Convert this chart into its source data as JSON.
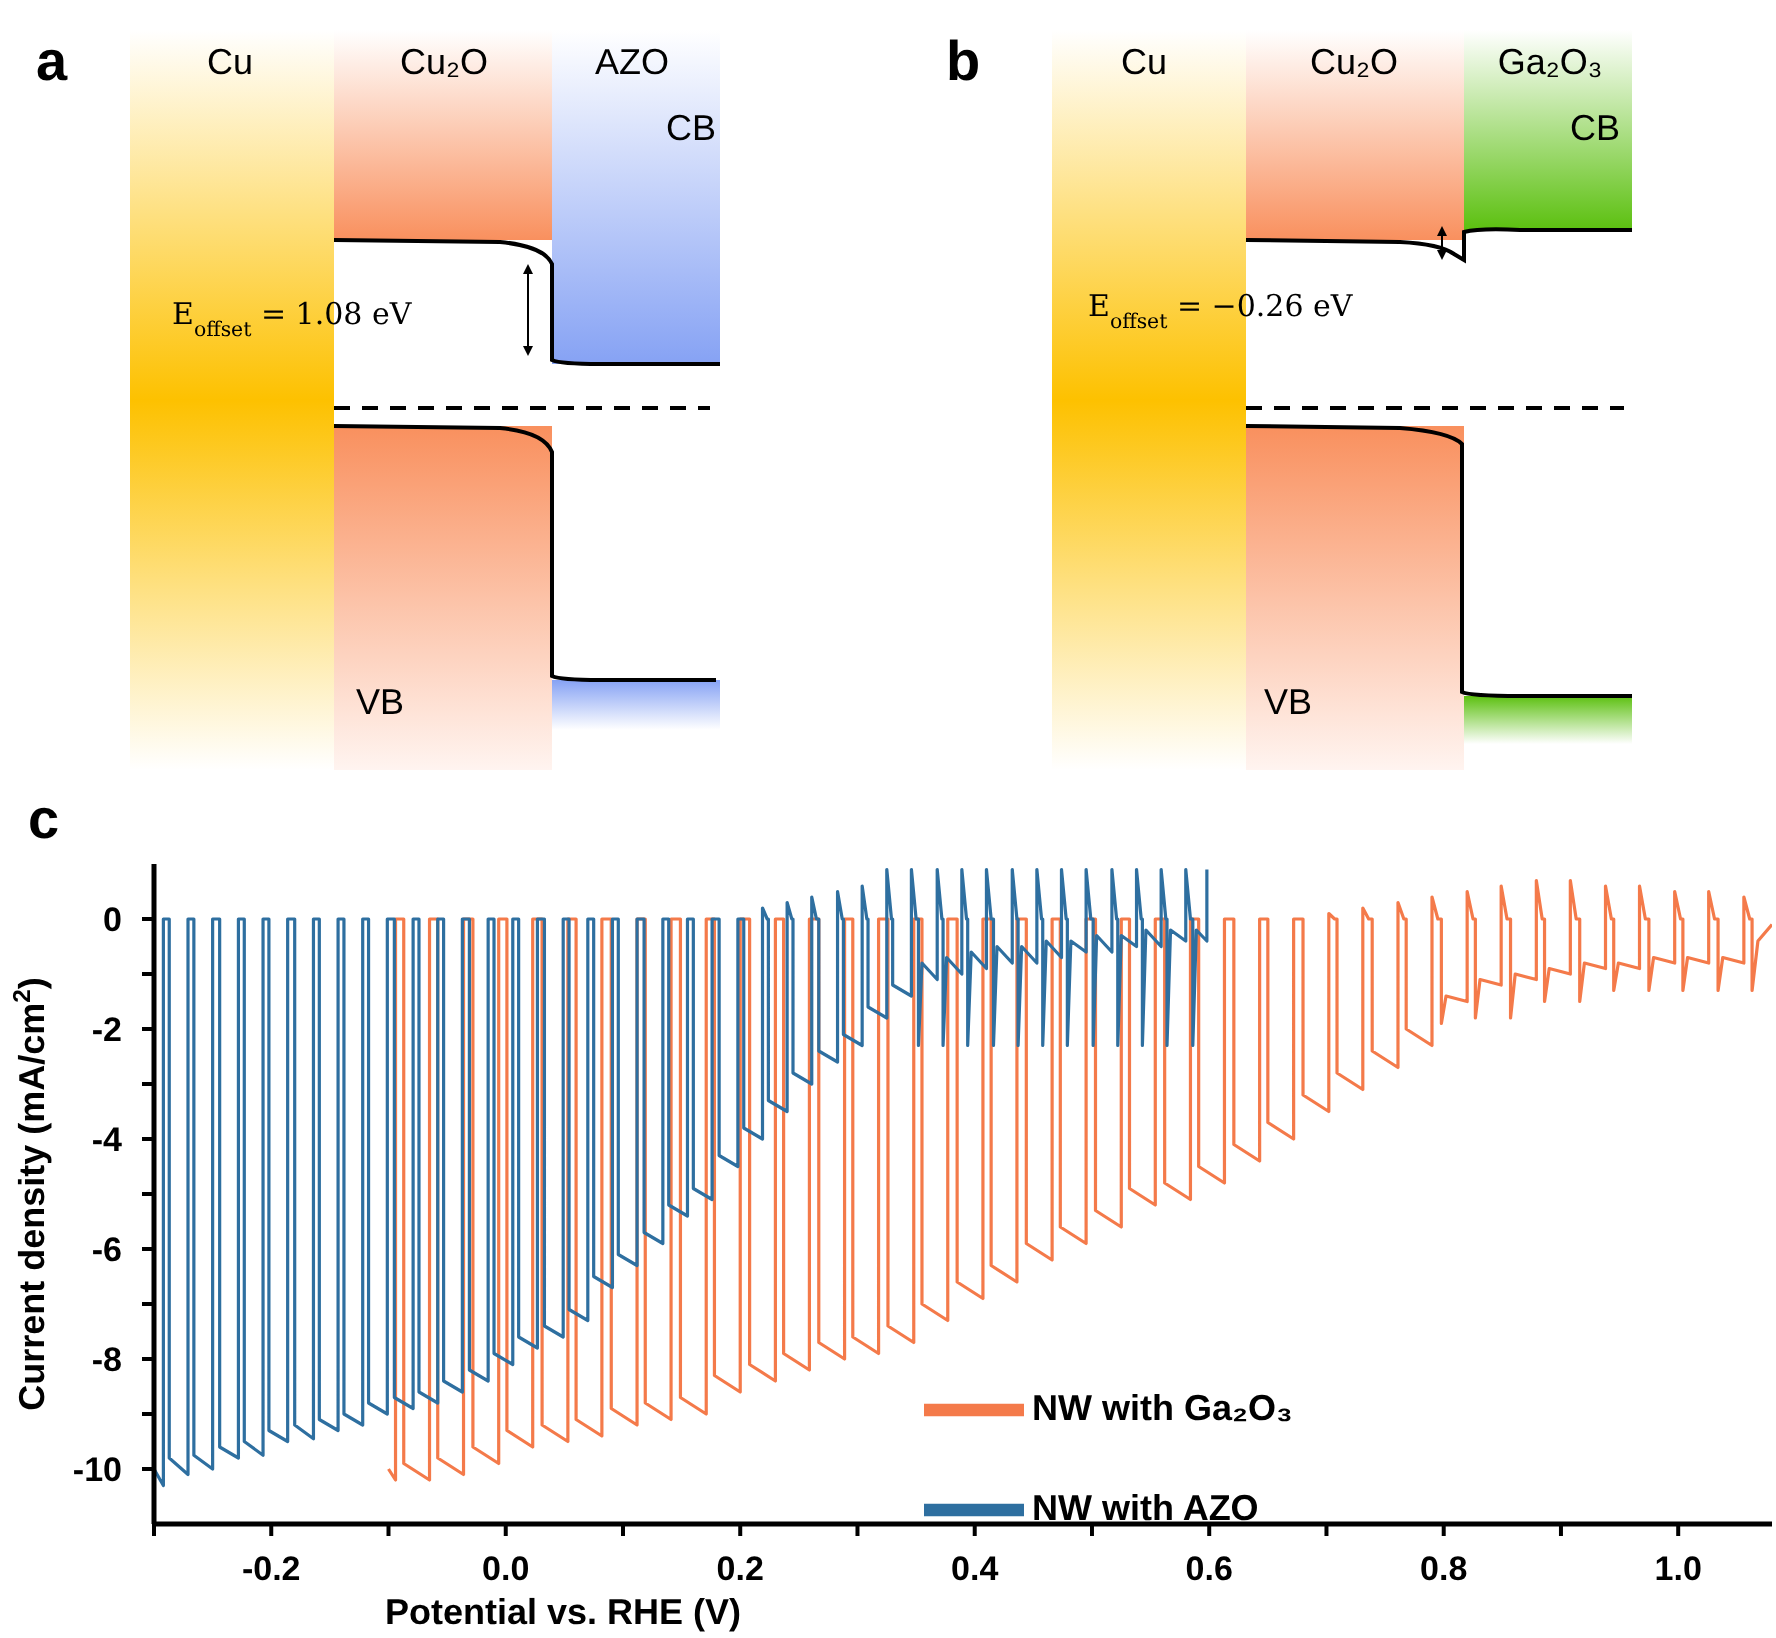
{
  "chart_data": [
    {
      "type": "other",
      "title": "a",
      "annotations": [
        "Cu",
        "Cu₂O",
        "AZO",
        "CB",
        "VB",
        "E$_{offset}$ = 1.08 eV"
      ]
    },
    {
      "type": "other",
      "title": "b",
      "annotations": [
        "Cu",
        "Cu₂O",
        "Ga₂O₃",
        "CB",
        "VB",
        "E$_{offset}$ = −0.26 eV"
      ]
    },
    {
      "type": "line",
      "title": "c",
      "xlabel": "Potential vs. RHE (V)",
      "ylabel": "Current density (mA/cm$^{2}$)",
      "xlim": [
        -0.3,
        1.08
      ],
      "ylim": [
        -11,
        1
      ],
      "xticks": [
        {
          "value": -0.3,
          "label": null
        },
        -0.2,
        {
          "value": -0.1,
          "label": null
        },
        {
          "value": 0,
          "label": "0.0"
        },
        {
          "value": 0.1,
          "label": null
        },
        0.2,
        {
          "value": 0.3,
          "label": null
        },
        0.4,
        {
          "value": 0.5,
          "label": null
        },
        0.6,
        {
          "value": 0.7,
          "label": null
        },
        0.8,
        {
          "value": 0.9,
          "label": null
        },
        {
          "value": 1.0,
          "label": "1.0"
        }
      ],
      "yticks": [
        -10,
        {
          "value": -9,
          "label": null
        },
        -8,
        {
          "value": -7,
          "label": null
        },
        -6,
        {
          "value": -5,
          "label": null
        },
        -4,
        {
          "value": -3,
          "label": null
        },
        -2,
        {
          "value": -1,
          "label": null
        },
        0
      ],
      "legend": "bottom",
      "series": [
        {
          "name": "NW with Ga₂O₃",
          "color": "#f47a4a",
          "x": [
            -0.1,
            -0.094,
            -0.094,
            -0.087,
            -0.087,
            -0.065,
            -0.065,
            -0.058,
            -0.058,
            -0.036,
            -0.036,
            -0.028,
            -0.028,
            -0.006,
            -0.006,
            0.001,
            0.001,
            0.023,
            0.023,
            0.031,
            0.031,
            0.053,
            0.053,
            0.06,
            0.06,
            0.082,
            0.082,
            0.09,
            0.09,
            0.112,
            0.112,
            0.119,
            0.119,
            0.141,
            0.141,
            0.149,
            0.149,
            0.171,
            0.171,
            0.178,
            0.178,
            0.2,
            0.2,
            0.208,
            0.208,
            0.23,
            0.23,
            0.237,
            0.237,
            0.259,
            0.259,
            0.267,
            0.267,
            0.289,
            0.289,
            0.296,
            0.296,
            0.318,
            0.318,
            0.326,
            0.326,
            0.348,
            0.348,
            0.355,
            0.355,
            0.377,
            0.377,
            0.385,
            0.385,
            0.407,
            0.407,
            0.414,
            0.414,
            0.436,
            0.436,
            0.444,
            0.444,
            0.466,
            0.466,
            0.473,
            0.473,
            0.495,
            0.495,
            0.503,
            0.503,
            0.525,
            0.525,
            0.532,
            0.532,
            0.554,
            0.554,
            0.562,
            0.562,
            0.584,
            0.584,
            0.591,
            0.591,
            0.613,
            0.613,
            0.621,
            0.621,
            0.643,
            0.643,
            0.65,
            0.65,
            0.672,
            0.672,
            0.68,
            0.68,
            0.702,
            0.702,
            0.707,
            0.709,
            0.709,
            0.731,
            0.731,
            0.736,
            0.739,
            0.739,
            0.761,
            0.761,
            0.766,
            0.768,
            0.768,
            0.79,
            0.79,
            0.795,
            0.798,
            0.798,
            0.802,
            0.82,
            0.82,
            0.825,
            0.827,
            0.827,
            0.831,
            0.849,
            0.849,
            0.854,
            0.857,
            0.857,
            0.861,
            0.879,
            0.879,
            0.884,
            0.886,
            0.886,
            0.89,
            0.908,
            0.908,
            0.913,
            0.916,
            0.916,
            0.92,
            0.938,
            0.938,
            0.943,
            0.945,
            0.945,
            0.949,
            0.967,
            0.967,
            0.972,
            0.975,
            0.975,
            0.979,
            0.997,
            0.997,
            1.002,
            1.004,
            1.004,
            1.008,
            1.026,
            1.026,
            1.031,
            1.034,
            1.034,
            1.038,
            1.056,
            1.056,
            1.061,
            1.063,
            1.063,
            1.068,
            1.08
          ],
          "values": [
            -10.0,
            -10.2,
            0,
            0,
            -9.9,
            -10.2,
            0,
            0,
            -9.8,
            -10.1,
            0,
            0,
            -9.6,
            -9.9,
            0,
            0,
            -9.3,
            -9.6,
            0,
            0,
            -9.2,
            -9.5,
            0,
            0,
            -9.1,
            -9.4,
            0,
            0,
            -8.9,
            -9.2,
            0,
            0,
            -8.8,
            -9.1,
            0,
            0,
            -8.7,
            -9.0,
            0,
            0,
            -8.3,
            -8.6,
            0,
            0,
            -8.1,
            -8.4,
            0,
            0,
            -7.9,
            -8.2,
            0,
            0,
            -7.7,
            -8.0,
            0,
            0,
            -7.6,
            -7.9,
            0,
            0,
            -7.4,
            -7.7,
            0,
            0,
            -7.0,
            -7.3,
            0,
            0,
            -6.6,
            -6.9,
            0,
            0,
            -6.3,
            -6.6,
            0,
            0,
            -5.9,
            -6.2,
            0,
            0,
            -5.6,
            -5.9,
            0,
            0,
            -5.3,
            -5.6,
            0,
            0,
            -4.9,
            -5.2,
            0,
            0,
            -4.8,
            -5.1,
            0,
            0,
            -4.5,
            -4.8,
            0,
            0,
            -4.1,
            -4.4,
            0,
            0,
            -3.7,
            -4.0,
            0,
            0,
            -3.2,
            -3.5,
            0.1,
            0,
            0,
            -2.8,
            -3.1,
            0.2,
            0,
            0,
            -2.4,
            -2.7,
            0.3,
            0,
            0,
            -2.0,
            -2.3,
            0.4,
            0,
            0,
            -1.9,
            -1.4,
            -1.5,
            0.5,
            0,
            0,
            -1.8,
            -1.1,
            -1.2,
            0.6,
            0,
            0,
            -1.8,
            -1.0,
            -1.1,
            0.7,
            0,
            0,
            -1.5,
            -0.9,
            -1.0,
            0.7,
            0,
            0,
            -1.5,
            -0.8,
            -0.9,
            0.6,
            0,
            0,
            -1.3,
            -0.8,
            -0.9,
            0.6,
            0,
            0,
            -1.3,
            -0.7,
            -0.8,
            0.5,
            0,
            0,
            -1.3,
            -0.7,
            -0.8,
            0.5,
            0,
            0,
            -1.3,
            -0.7,
            -0.8,
            0.4,
            0,
            0,
            -1.3,
            -0.4,
            -0.1
          ]
        },
        {
          "name": "NW with AZO",
          "color": "#2e6fa0",
          "x": [
            -0.3,
            -0.292,
            -0.292,
            -0.287,
            -0.287,
            -0.271,
            -0.271,
            -0.266,
            -0.266,
            -0.25,
            -0.25,
            -0.244,
            -0.244,
            -0.228,
            -0.228,
            -0.223,
            -0.223,
            -0.207,
            -0.207,
            -0.202,
            -0.202,
            -0.186,
            -0.186,
            -0.18,
            -0.18,
            -0.164,
            -0.164,
            -0.159,
            -0.159,
            -0.143,
            -0.143,
            -0.138,
            -0.138,
            -0.122,
            -0.122,
            -0.117,
            -0.117,
            -0.101,
            -0.101,
            -0.095,
            -0.095,
            -0.079,
            -0.079,
            -0.074,
            -0.074,
            -0.058,
            -0.058,
            -0.053,
            -0.053,
            -0.037,
            -0.037,
            -0.031,
            -0.031,
            -0.015,
            -0.015,
            -0.01,
            -0.01,
            0.006,
            0.006,
            0.011,
            0.011,
            0.027,
            0.027,
            0.033,
            0.033,
            0.049,
            0.049,
            0.054,
            0.054,
            0.07,
            0.07,
            0.075,
            0.075,
            0.091,
            0.091,
            0.096,
            0.096,
            0.112,
            0.112,
            0.118,
            0.118,
            0.134,
            0.134,
            0.139,
            0.139,
            0.155,
            0.155,
            0.16,
            0.16,
            0.176,
            0.176,
            0.182,
            0.182,
            0.198,
            0.198,
            0.203,
            0.203,
            0.219,
            0.219,
            0.223,
            0.224,
            0.224,
            0.24,
            0.24,
            0.244,
            0.245,
            0.245,
            0.261,
            0.261,
            0.265,
            0.267,
            0.267,
            0.283,
            0.283,
            0.287,
            0.288,
            0.288,
            0.304,
            0.304,
            0.308,
            0.309,
            0.309,
            0.325,
            0.325,
            0.329,
            0.33,
            0.33,
            0.346,
            0.346,
            0.35,
            0.352,
            0.352,
            0.355,
            0.368,
            0.368,
            0.372,
            0.373,
            0.373,
            0.376,
            0.389,
            0.389,
            0.393,
            0.394,
            0.394,
            0.397,
            0.41,
            0.41,
            0.414,
            0.416,
            0.416,
            0.419,
            0.432,
            0.432,
            0.436,
            0.437,
            0.437,
            0.44,
            0.453,
            0.453,
            0.457,
            0.458,
            0.458,
            0.461,
            0.474,
            0.474,
            0.478,
            0.479,
            0.479,
            0.482,
            0.495,
            0.495,
            0.499,
            0.501,
            0.501,
            0.504,
            0.517,
            0.517,
            0.521,
            0.522,
            0.522,
            0.525,
            0.538,
            0.538,
            0.542,
            0.543,
            0.543,
            0.546,
            0.559,
            0.559,
            0.563,
            0.564,
            0.564,
            0.567,
            0.58,
            0.58,
            0.584,
            0.586,
            0.586,
            0.589,
            0.598,
            0.598
          ],
          "values": [
            -10.0,
            -10.3,
            0,
            0,
            -9.8,
            -10.1,
            0,
            0,
            -9.75,
            -10.0,
            0,
            0,
            -9.6,
            -9.8,
            0,
            0,
            -9.5,
            -9.75,
            0,
            0,
            -9.3,
            -9.5,
            0,
            0,
            -9.2,
            -9.45,
            0,
            0,
            -9.1,
            -9.3,
            0,
            0,
            -9.0,
            -9.2,
            0,
            0,
            -8.8,
            -9.0,
            0,
            0,
            -8.7,
            -8.9,
            0,
            0,
            -8.6,
            -8.8,
            0,
            0,
            -8.4,
            -8.6,
            0,
            0,
            -8.2,
            -8.4,
            0,
            0,
            -7.9,
            -8.1,
            0,
            0,
            -7.6,
            -7.8,
            0,
            0,
            -7.4,
            -7.6,
            0,
            0,
            -7.1,
            -7.3,
            0,
            0,
            -6.5,
            -6.7,
            0,
            0,
            -6.1,
            -6.3,
            0,
            0,
            -5.7,
            -5.9,
            0,
            0,
            -5.2,
            -5.4,
            0,
            0,
            -4.9,
            -5.1,
            0,
            0,
            -4.3,
            -4.5,
            0,
            0,
            -3.8,
            -4.0,
            0.2,
            0,
            0,
            -3.3,
            -3.5,
            0.3,
            0,
            0,
            -2.8,
            -3.0,
            0.4,
            0,
            0,
            -2.4,
            -2.6,
            0.5,
            0,
            0,
            -2.1,
            -2.3,
            0.6,
            0,
            0,
            -1.6,
            -1.8,
            0.9,
            0,
            0,
            -1.2,
            -1.4,
            0.9,
            0,
            0,
            -2.3,
            -0.8,
            -1.1,
            0.9,
            0,
            0,
            -2.3,
            -0.7,
            -1.0,
            0.9,
            0,
            0,
            -2.3,
            -0.6,
            -0.9,
            0.9,
            0,
            0,
            -2.3,
            -0.5,
            -0.8,
            0.9,
            0,
            0,
            -2.3,
            -0.5,
            -0.8,
            0.9,
            0,
            0,
            -2.3,
            -0.4,
            -0.7,
            0.9,
            0,
            0,
            -2.3,
            -0.4,
            -0.6,
            0.9,
            0,
            0,
            -2.3,
            -0.3,
            -0.6,
            0.9,
            0,
            0,
            -2.3,
            -0.3,
            -0.5,
            0.9,
            0,
            0,
            -2.3,
            -0.2,
            -0.5,
            0.9,
            0,
            0,
            -2.3,
            -0.2,
            -0.4,
            0.9,
            0,
            0,
            -2.3,
            -0.2,
            -0.4,
            0.9
          ]
        }
      ]
    }
  ]
}
